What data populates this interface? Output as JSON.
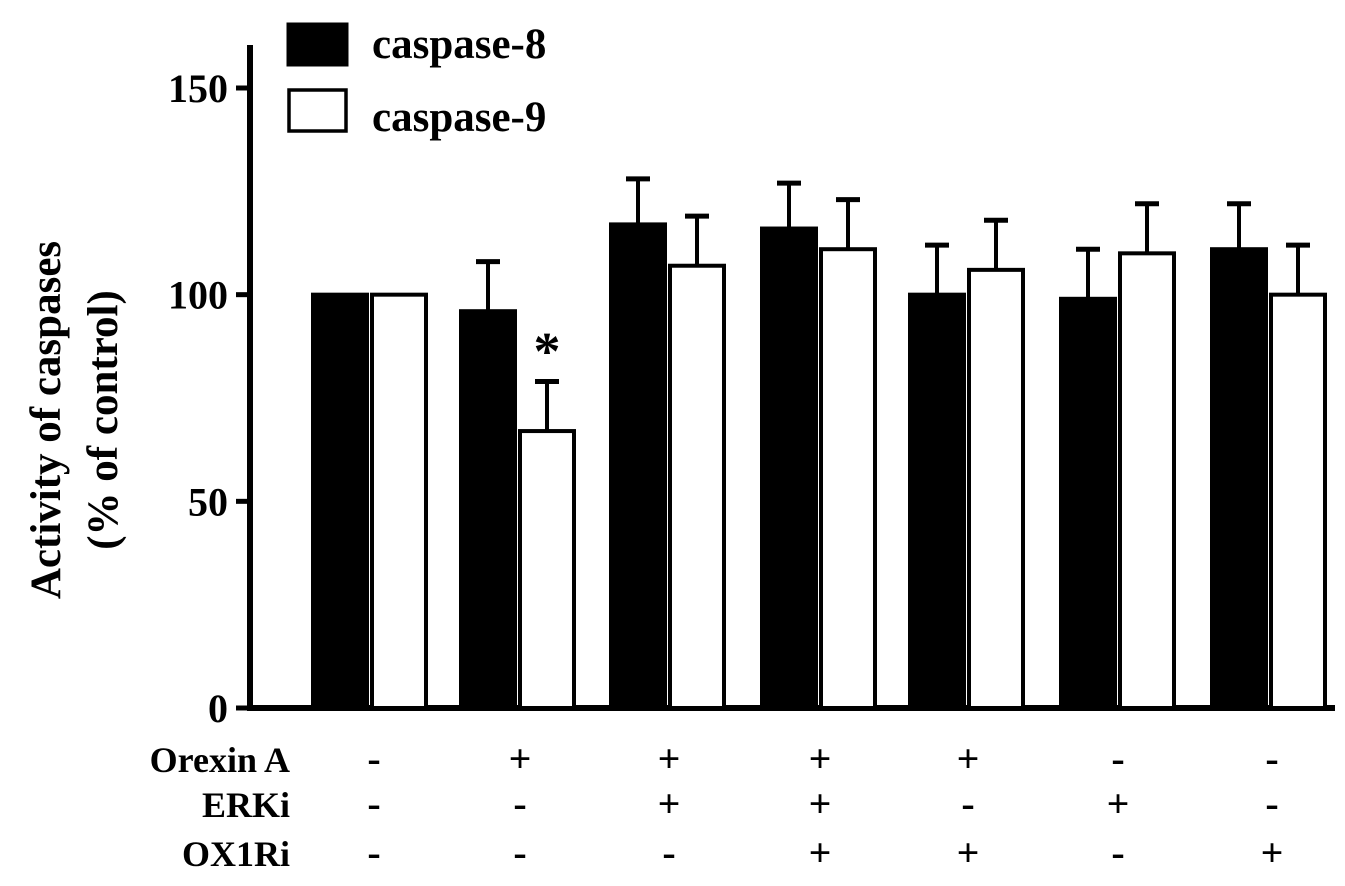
{
  "chart_data": {
    "type": "bar",
    "title": "",
    "ylabel_lines": [
      "Activity of caspases",
      "(% of control)"
    ],
    "xlabel": "",
    "ylim": [
      0,
      150
    ],
    "yticks": [
      0,
      50,
      100,
      150
    ],
    "grid": false,
    "legend_position": "top-left",
    "series": [
      {
        "name": "caspase-8",
        "color": "#000000",
        "values": [
          100,
          96,
          117,
          116,
          100,
          99,
          111
        ],
        "errors": [
          0,
          12,
          11,
          11,
          12,
          12,
          11
        ]
      },
      {
        "name": "caspase-9",
        "color": "#ffffff",
        "values": [
          100,
          67,
          107,
          111,
          106,
          110,
          100
        ],
        "errors": [
          0,
          12,
          12,
          12,
          12,
          12,
          12
        ]
      }
    ],
    "annotations": [
      {
        "group": 1,
        "series": 1,
        "text": "*"
      }
    ],
    "conditions": [
      {
        "label": "Orexin A",
        "values": [
          "-",
          "+",
          "+",
          "+",
          "+",
          "-",
          "-"
        ]
      },
      {
        "label": "ERKi",
        "values": [
          "-",
          "-",
          "+",
          "+",
          "-",
          "+",
          "-"
        ]
      },
      {
        "label": "OX1Ri",
        "values": [
          "-",
          "-",
          "-",
          "+",
          "+",
          "-",
          "+"
        ]
      }
    ]
  }
}
